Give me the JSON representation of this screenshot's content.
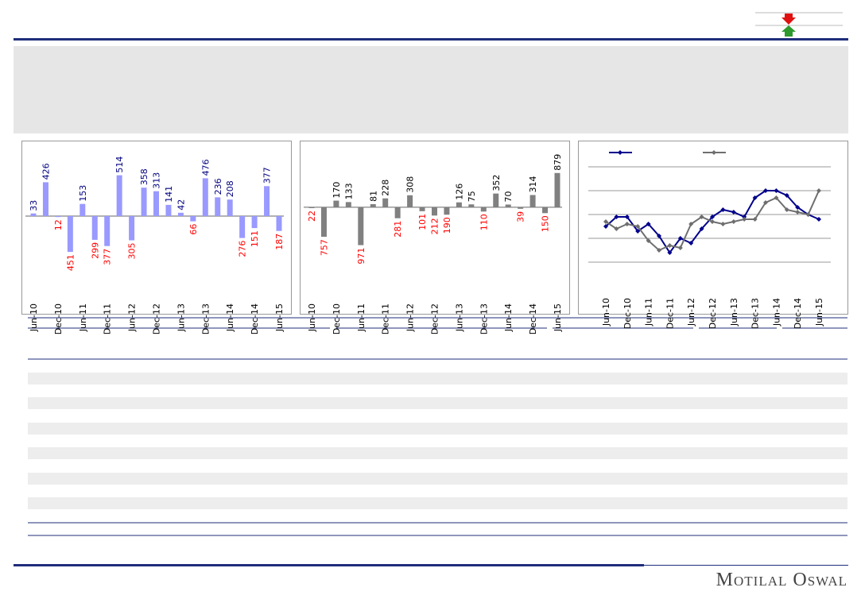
{
  "chart_data": [
    {
      "type": "bar",
      "color": "#9999ff",
      "categories": [
        "Jun-10",
        null,
        "Dec-10",
        null,
        "Jun-11",
        null,
        "Dec-11",
        null,
        "Jun-12",
        null,
        "Dec-12",
        null,
        "Jun-13",
        null,
        "Dec-13",
        null,
        "Jun-14",
        null,
        "Dec-14",
        null,
        "Jun-15"
      ],
      "values": [
        33,
        426,
        -12,
        -451,
        153,
        -299,
        -377,
        514,
        -305,
        358,
        313,
        141,
        42,
        -66,
        476,
        236,
        208,
        -276,
        -151,
        377,
        -187
      ],
      "value_labels": [
        "33",
        "426",
        "12",
        "451",
        "153",
        "299",
        "377",
        "514",
        "305",
        "358",
        "313",
        "141",
        "42",
        "66",
        "476",
        "236",
        "208",
        "276",
        "151",
        "377",
        "187"
      ],
      "value_label_colors": {
        "positive": "#000080",
        "negative": "#ff0000"
      },
      "ylim": [
        -600,
        600
      ]
    },
    {
      "type": "bar",
      "color": "#808080",
      "categories": [
        "Jun-10",
        null,
        "Dec-10",
        null,
        "Jun-11",
        null,
        "Dec-11",
        null,
        "Jun-12",
        null,
        "Dec-12",
        null,
        "Jun-13",
        null,
        "Dec-13",
        null,
        "Jun-14",
        null,
        "Dec-14",
        null,
        "Jun-15"
      ],
      "values": [
        -22,
        -757,
        170,
        133,
        -971,
        81,
        228,
        -281,
        308,
        -101,
        -212,
        -190,
        126,
        75,
        -110,
        352,
        70,
        -39,
        314,
        -150,
        879
      ],
      "value_labels": [
        "22",
        "757",
        "170",
        "133",
        "971",
        "81",
        "228",
        "281",
        "308",
        "101",
        "212",
        "190",
        "126",
        "75",
        "110",
        "352",
        "70",
        "39",
        "314",
        "150",
        "879"
      ],
      "value_label_colors": {
        "positive": "#000000",
        "negative": "#ff0000"
      },
      "ylim": [
        -1000,
        1200
      ]
    },
    {
      "type": "line",
      "legend": true,
      "grid": true,
      "categories": [
        "Jun-10",
        null,
        "Dec-10",
        null,
        "Jun-11",
        null,
        "Dec-11",
        null,
        "Jun-12",
        null,
        "Dec-12",
        null,
        "Jun-13",
        null,
        "Dec-13",
        null,
        "Jun-14",
        null,
        "Dec-14",
        null,
        "Jun-15"
      ],
      "series": [
        {
          "color": "#00008b",
          "values": [
            1.5,
            1.9,
            1.9,
            1.3,
            1.6,
            1.1,
            0.4,
            1.0,
            0.8,
            1.4,
            1.9,
            2.2,
            2.1,
            1.9,
            2.7,
            3.0,
            3.0,
            2.8,
            2.3,
            2.0,
            1.8
          ]
        },
        {
          "color": "#6e6e6e",
          "values": [
            1.7,
            1.4,
            1.6,
            1.5,
            0.9,
            0.5,
            0.7,
            0.6,
            1.6,
            1.9,
            1.7,
            1.6,
            1.7,
            1.8,
            1.8,
            2.5,
            2.7,
            2.2,
            2.1,
            2.0,
            3.0
          ]
        }
      ],
      "ylim": [
        0,
        4
      ],
      "yticks": [
        0,
        1,
        2,
        3,
        4
      ]
    }
  ],
  "footer": {
    "brand": "Motilal Oswal"
  }
}
